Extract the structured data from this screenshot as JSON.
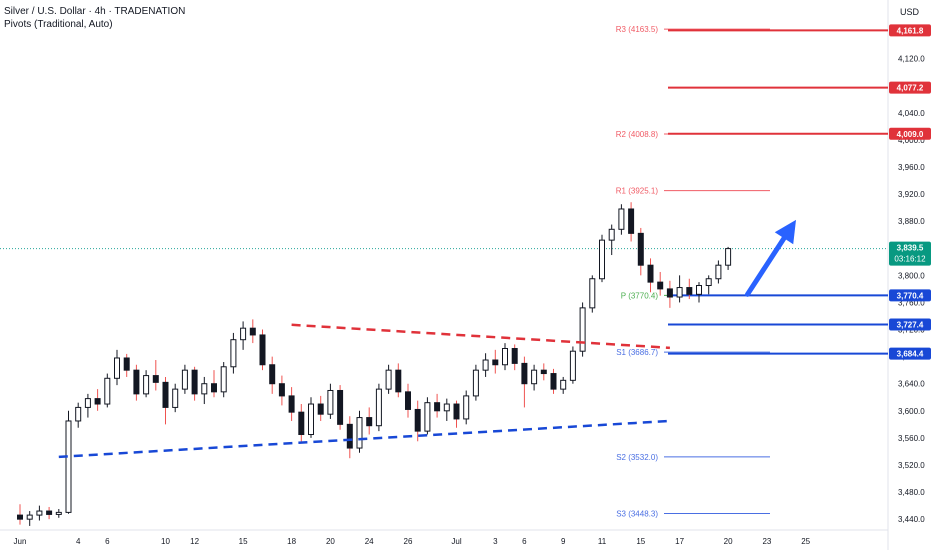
{
  "header": {
    "title": "Silver / U.S. Dollar · 4h · TRADENATION",
    "indicator": "Pivots (Traditional, Auto)",
    "currency": "USD"
  },
  "colors": {
    "up": "#26a69a",
    "down": "#ef5350",
    "candle": "#131722",
    "resistance": "#e0323a",
    "support": "#1848d6",
    "arrow": "#2962ff",
    "pivot_p": "#4caf50",
    "pivot_r": "#f05b65",
    "pivot_s": "#4a6fe3",
    "last_price_bg": "#089981"
  },
  "chart_data": {
    "type": "candlestick",
    "price_axis": {
      "ticks": [
        3440,
        3480,
        3520,
        3560,
        3600,
        3640,
        3680,
        3720,
        3760,
        3800,
        3840,
        3880,
        3920,
        3960,
        4000,
        4040,
        4080,
        4120,
        4160
      ],
      "labels": [
        "3,440.0",
        "3,480.0",
        "3,520.0",
        "3,560.0",
        "3,600.0",
        "3,640.0",
        "3,680.0",
        "3,720.0",
        "3,760.0",
        "3,800.0",
        "3,840.0",
        "3,880.0",
        "3,920.0",
        "3,960.0",
        "4,000.0",
        "4,040.0",
        "4,080.0",
        "4,120.0",
        "4,160.0"
      ],
      "range": [
        3424,
        4180
      ]
    },
    "time_axis": {
      "labels": [
        "Jun",
        "4",
        "6",
        "10",
        "12",
        "15",
        "18",
        "20",
        "24",
        "26",
        "Jul",
        "3",
        "6",
        "9",
        "11",
        "15",
        "17",
        "20",
        "23",
        "25"
      ],
      "positions": [
        0,
        6,
        9,
        15,
        18,
        23,
        28,
        32,
        36,
        40,
        45,
        49,
        52,
        56,
        60,
        64,
        68,
        73,
        77,
        81
      ]
    },
    "candles": [
      [
        3446,
        3462,
        3432,
        3440
      ],
      [
        3440,
        3452,
        3430,
        3446
      ],
      [
        3446,
        3460,
        3438,
        3452
      ],
      [
        3452,
        3458,
        3440,
        3447
      ],
      [
        3447,
        3455,
        3442,
        3450
      ],
      [
        3450,
        3600,
        3448,
        3585
      ],
      [
        3585,
        3612,
        3575,
        3605
      ],
      [
        3605,
        3625,
        3590,
        3618
      ],
      [
        3618,
        3632,
        3600,
        3610
      ],
      [
        3610,
        3655,
        3605,
        3648
      ],
      [
        3648,
        3690,
        3638,
        3678
      ],
      [
        3678,
        3684,
        3650,
        3660
      ],
      [
        3660,
        3668,
        3615,
        3625
      ],
      [
        3625,
        3660,
        3620,
        3652
      ],
      [
        3652,
        3675,
        3630,
        3642
      ],
      [
        3642,
        3650,
        3580,
        3605
      ],
      [
        3605,
        3640,
        3598,
        3632
      ],
      [
        3632,
        3668,
        3625,
        3660
      ],
      [
        3660,
        3665,
        3615,
        3625
      ],
      [
        3625,
        3650,
        3610,
        3640
      ],
      [
        3640,
        3660,
        3620,
        3628
      ],
      [
        3628,
        3672,
        3620,
        3665
      ],
      [
        3665,
        3715,
        3655,
        3705
      ],
      [
        3705,
        3732,
        3690,
        3722
      ],
      [
        3722,
        3735,
        3700,
        3712
      ],
      [
        3712,
        3720,
        3660,
        3668
      ],
      [
        3668,
        3680,
        3625,
        3640
      ],
      [
        3640,
        3652,
        3608,
        3622
      ],
      [
        3622,
        3635,
        3585,
        3598
      ],
      [
        3598,
        3610,
        3552,
        3565
      ],
      [
        3565,
        3620,
        3560,
        3610
      ],
      [
        3610,
        3622,
        3585,
        3595
      ],
      [
        3595,
        3640,
        3588,
        3630
      ],
      [
        3630,
        3638,
        3572,
        3580
      ],
      [
        3580,
        3592,
        3530,
        3545
      ],
      [
        3545,
        3600,
        3538,
        3590
      ],
      [
        3590,
        3605,
        3565,
        3578
      ],
      [
        3578,
        3640,
        3570,
        3632
      ],
      [
        3632,
        3668,
        3625,
        3660
      ],
      [
        3660,
        3670,
        3620,
        3628
      ],
      [
        3628,
        3640,
        3590,
        3602
      ],
      [
        3602,
        3615,
        3555,
        3570
      ],
      [
        3570,
        3620,
        3565,
        3612
      ],
      [
        3612,
        3625,
        3590,
        3600
      ],
      [
        3600,
        3618,
        3585,
        3610
      ],
      [
        3610,
        3615,
        3575,
        3588
      ],
      [
        3588,
        3630,
        3580,
        3622
      ],
      [
        3622,
        3668,
        3615,
        3660
      ],
      [
        3660,
        3685,
        3650,
        3675
      ],
      [
        3675,
        3690,
        3655,
        3668
      ],
      [
        3668,
        3700,
        3660,
        3692
      ],
      [
        3692,
        3698,
        3660,
        3670
      ],
      [
        3670,
        3680,
        3605,
        3640
      ],
      [
        3640,
        3668,
        3630,
        3660
      ],
      [
        3660,
        3670,
        3645,
        3655
      ],
      [
        3655,
        3662,
        3625,
        3632
      ],
      [
        3632,
        3650,
        3625,
        3645
      ],
      [
        3645,
        3695,
        3640,
        3688
      ],
      [
        3688,
        3760,
        3680,
        3752
      ],
      [
        3752,
        3800,
        3745,
        3795
      ],
      [
        3795,
        3860,
        3790,
        3852
      ],
      [
        3852,
        3875,
        3830,
        3868
      ],
      [
        3868,
        3905,
        3860,
        3898
      ],
      [
        3898,
        3908,
        3850,
        3862
      ],
      [
        3862,
        3870,
        3800,
        3815
      ],
      [
        3815,
        3825,
        3775,
        3790
      ],
      [
        3790,
        3805,
        3770,
        3780
      ],
      [
        3780,
        3792,
        3752,
        3768
      ],
      [
        3768,
        3800,
        3760,
        3782
      ],
      [
        3782,
        3795,
        3765,
        3772
      ],
      [
        3772,
        3790,
        3760,
        3785
      ],
      [
        3785,
        3800,
        3772,
        3795
      ],
      [
        3795,
        3822,
        3788,
        3815
      ],
      [
        3815,
        3842,
        3808,
        3839.5
      ]
    ],
    "drawings": [
      {
        "kind": "descending trendline",
        "from": [
          28,
          3727
        ],
        "to": [
          67,
          3693
        ],
        "style": "dashed",
        "color": "resistance"
      },
      {
        "kind": "ascending trendline",
        "from": [
          4,
          3532
        ],
        "to": [
          67,
          3585
        ],
        "style": "dashed",
        "color": "support"
      },
      {
        "kind": "bullish arrow",
        "from": [
          75,
          3772
        ],
        "to": [
          80,
          3882
        ]
      }
    ],
    "pivot_levels": [
      {
        "label": "R3 (4163.5)",
        "value": 4163.5,
        "color": "pivot_r"
      },
      {
        "label": "R2 (4008.8)",
        "value": 4008.8,
        "color": "pivot_r"
      },
      {
        "label": "R1 (3925.1)",
        "value": 3925.1,
        "color": "pivot_r"
      },
      {
        "label": "P (3770.4)",
        "value": 3770.4,
        "color": "pivot_p"
      },
      {
        "label": "S1 (3686.7)",
        "value": 3686.7,
        "color": "pivot_s"
      },
      {
        "label": "S2 (3532.0)",
        "value": 3532.0,
        "color": "pivot_s"
      },
      {
        "label": "S3 (3448.3)",
        "value": 3448.3,
        "color": "pivot_s"
      }
    ],
    "key_levels": [
      {
        "value": 4161.8,
        "label": "4,161.8",
        "color": "resistance"
      },
      {
        "value": 4077.2,
        "label": "4,077.2",
        "color": "resistance"
      },
      {
        "value": 4009.0,
        "label": "4,009.0",
        "color": "resistance"
      },
      {
        "value": 3770.4,
        "label": "3,770.4",
        "color": "support"
      },
      {
        "value": 3727.4,
        "label": "3,727.4",
        "color": "support"
      },
      {
        "value": 3684.4,
        "label": "3,684.4",
        "color": "support"
      }
    ],
    "last_price": {
      "value": 3839.5,
      "label": "3,839.5",
      "countdown": "03:16:12"
    }
  }
}
